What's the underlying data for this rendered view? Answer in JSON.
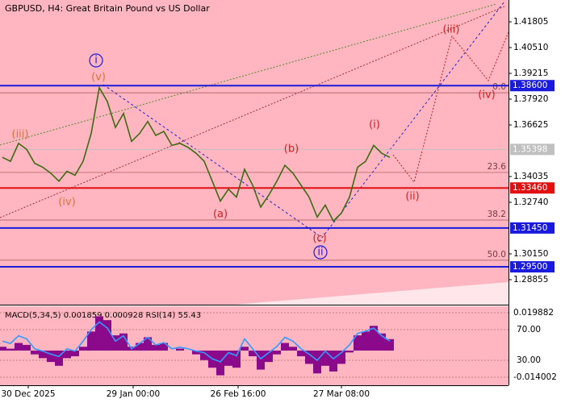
{
  "chart_data": {
    "type": "line",
    "title": "GBPUSD, H4:  Great Britain Pound vs US Dollar",
    "x": [
      0,
      1,
      2,
      3,
      4,
      5,
      6,
      7,
      8,
      9,
      10,
      11,
      12,
      13,
      14,
      15,
      16,
      17,
      18,
      19,
      20,
      21,
      22,
      23,
      24,
      25,
      26,
      27,
      28,
      29,
      30,
      31,
      32,
      33,
      34,
      35,
      36,
      37,
      38,
      39,
      40,
      41,
      42,
      43,
      44,
      45,
      46,
      47,
      48
    ],
    "xlim": [
      -0.3,
      62.7
    ],
    "xticks": [
      {
        "value": 3.2,
        "label": "30 Dec 2025"
      },
      {
        "value": 16.2,
        "label": "29 Jan 00:00"
      },
      {
        "value": 29.2,
        "label": "26 Feb 16:00"
      },
      {
        "value": 42,
        "label": "27 Mar 08:00"
      }
    ],
    "series": [
      {
        "name": "GBPUSD",
        "color": "#3d6b12",
        "values": [
          1.35,
          1.348,
          1.357,
          1.354,
          1.347,
          1.345,
          1.342,
          1.338,
          1.343,
          1.341,
          1.348,
          1.362,
          1.385,
          1.378,
          1.365,
          1.372,
          1.358,
          1.362,
          1.368,
          1.361,
          1.363,
          1.356,
          1.357,
          1.355,
          1.352,
          1.348,
          1.338,
          1.328,
          1.334,
          1.33,
          1.344,
          1.336,
          1.325,
          1.331,
          1.338,
          1.346,
          1.342,
          1.336,
          1.33,
          1.32,
          1.326,
          1.318,
          1.322,
          1.33,
          1.345,
          1.348,
          1.356,
          1.352,
          1.35
        ]
      }
    ],
    "ylim": [
      1.276,
      1.429
    ],
    "yticks": [
      {
        "value": 1.41805,
        "label": "1.41805"
      },
      {
        "value": 1.4051,
        "label": "1.40510"
      },
      {
        "value": 1.39215,
        "label": "1.39215"
      },
      {
        "value": 1.3792,
        "label": "1.37920"
      },
      {
        "value": 1.36625,
        "label": "1.36625"
      },
      {
        "value": 1.34035,
        "label": "1.34035"
      },
      {
        "value": 1.3274,
        "label": "1.32740"
      },
      {
        "value": 1.3015,
        "label": "1.30150"
      },
      {
        "value": 1.28855,
        "label": "1.28855"
      }
    ],
    "levels": [
      {
        "value": 1.386,
        "label": "1.38600",
        "color": "#1a1adc"
      },
      {
        "value": 1.35398,
        "label": "1.35398",
        "color": "#c0c0c0"
      },
      {
        "value": 1.3346,
        "label": "1.33460",
        "color": "#e01010"
      },
      {
        "value": 1.3145,
        "label": "1.31450",
        "color": "#1a1adc"
      },
      {
        "value": 1.295,
        "label": "1.29500",
        "color": "#1a1adc"
      }
    ],
    "fib_levels": [
      {
        "value": 1.3824,
        "label": "0.0"
      },
      {
        "value": 1.3424,
        "label": "23.6"
      },
      {
        "value": 1.3185,
        "label": "38.2"
      },
      {
        "value": 1.2983,
        "label": "50.0"
      }
    ],
    "annotations": [
      {
        "text": "(iii)",
        "color": "#e07030"
      },
      {
        "text": "(iv)",
        "color": "#e07030"
      },
      {
        "text": "(v)",
        "color": "#e07030"
      },
      {
        "text": "i",
        "color": "#1a1adc"
      },
      {
        "text": "(a)",
        "color": "#d02020"
      },
      {
        "text": "(b)",
        "color": "#d02020"
      },
      {
        "text": "(c)",
        "color": "#d02020"
      },
      {
        "text": "ii",
        "color": "#1a1adc"
      },
      {
        "text": "(i)",
        "color": "#d02020"
      },
      {
        "text": "(ii)",
        "color": "#d02020"
      },
      {
        "text": "(iii)",
        "color": "#d02020"
      },
      {
        "text": "(iv)",
        "color": "#d02020"
      }
    ],
    "indicator": {
      "title": "MACD(5,34,5) 0.001859 0.000928 RSI(14) 55.43",
      "histogram": {
        "name": "MACD",
        "color": "#8b0a8b",
        "values": [
          0.002,
          0.001,
          0.004,
          0.003,
          -0.002,
          -0.004,
          -0.006,
          -0.008,
          -0.004,
          -0.003,
          0.002,
          0.01,
          0.018,
          0.016,
          0.008,
          0.009,
          0.002,
          0.004,
          0.007,
          0.003,
          0.004,
          0.0,
          0.001,
          0.0,
          -0.002,
          -0.005,
          -0.009,
          -0.013,
          -0.008,
          -0.009,
          0.002,
          -0.003,
          -0.01,
          -0.006,
          -0.002,
          0.004,
          0.002,
          -0.003,
          -0.007,
          -0.012,
          -0.008,
          -0.011,
          -0.007,
          -0.001,
          0.008,
          0.01,
          0.013,
          0.009,
          0.006
        ]
      },
      "rsi": {
        "name": "RSI",
        "color": "#3399ff",
        "axis": "y2",
        "values": [
          55,
          52,
          62,
          58,
          45,
          42,
          38,
          35,
          45,
          42,
          55,
          70,
          80,
          72,
          55,
          62,
          45,
          52,
          60,
          50,
          53,
          45,
          47,
          45,
          42,
          40,
          32,
          28,
          40,
          36,
          58,
          45,
          32,
          40,
          48,
          60,
          55,
          45,
          38,
          30,
          42,
          32,
          40,
          50,
          65,
          68,
          72,
          62,
          55
        ]
      },
      "ylim": [
        -0.018237,
        0.02327
      ],
      "yticks": [
        {
          "value": 0.019882,
          "label": "0.019882"
        },
        {
          "value": -0.014002,
          "label": "-0.014002"
        }
      ],
      "y2lim": [
        -2.6,
        100.5
      ],
      "y2ticks": [
        {
          "value": 70,
          "label": "70.00"
        },
        {
          "value": 30,
          "label": "30.00"
        }
      ]
    }
  }
}
